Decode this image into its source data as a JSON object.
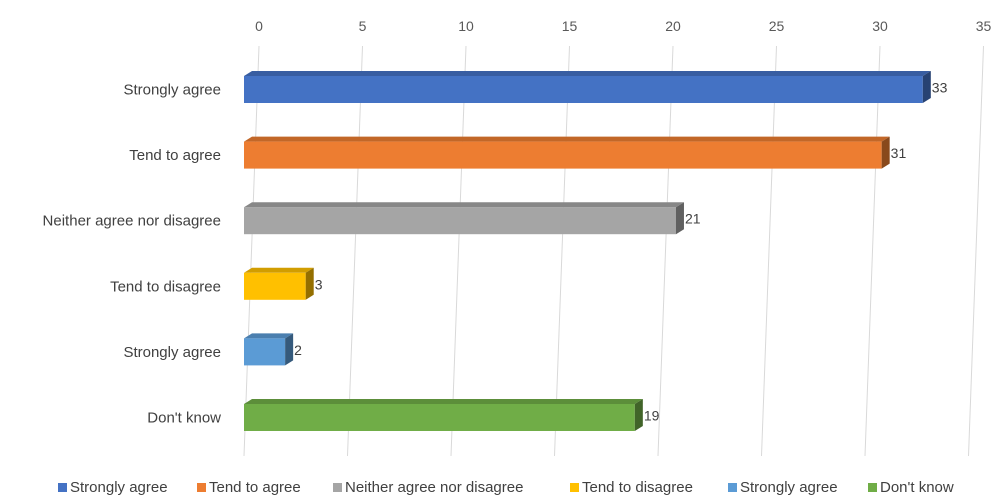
{
  "chart_data": {
    "type": "bar",
    "orientation": "horizontal",
    "style": "3d",
    "title": "",
    "xlabel": "",
    "ylabel": "",
    "xlim": [
      0,
      35
    ],
    "x_ticks": [
      0,
      5,
      10,
      15,
      20,
      25,
      30,
      35
    ],
    "grid": true,
    "legend": "bottom",
    "categories": [
      "Strongly agree",
      "Tend to agree",
      "Neither agree nor disagree",
      "Tend to disagree",
      "Strongly agree",
      "Don't know"
    ],
    "values": [
      33,
      31,
      21,
      3,
      2,
      19
    ],
    "colors": [
      "#4472C4",
      "#ED7D31",
      "#A5A5A5",
      "#FFC000",
      "#5B9BD5",
      "#70AD47"
    ],
    "legend_entries": [
      "Strongly agree",
      "Tend to agree",
      "Neither agree nor disagree",
      "Tend to disagree",
      "Strongly agree",
      "Don't know"
    ]
  }
}
